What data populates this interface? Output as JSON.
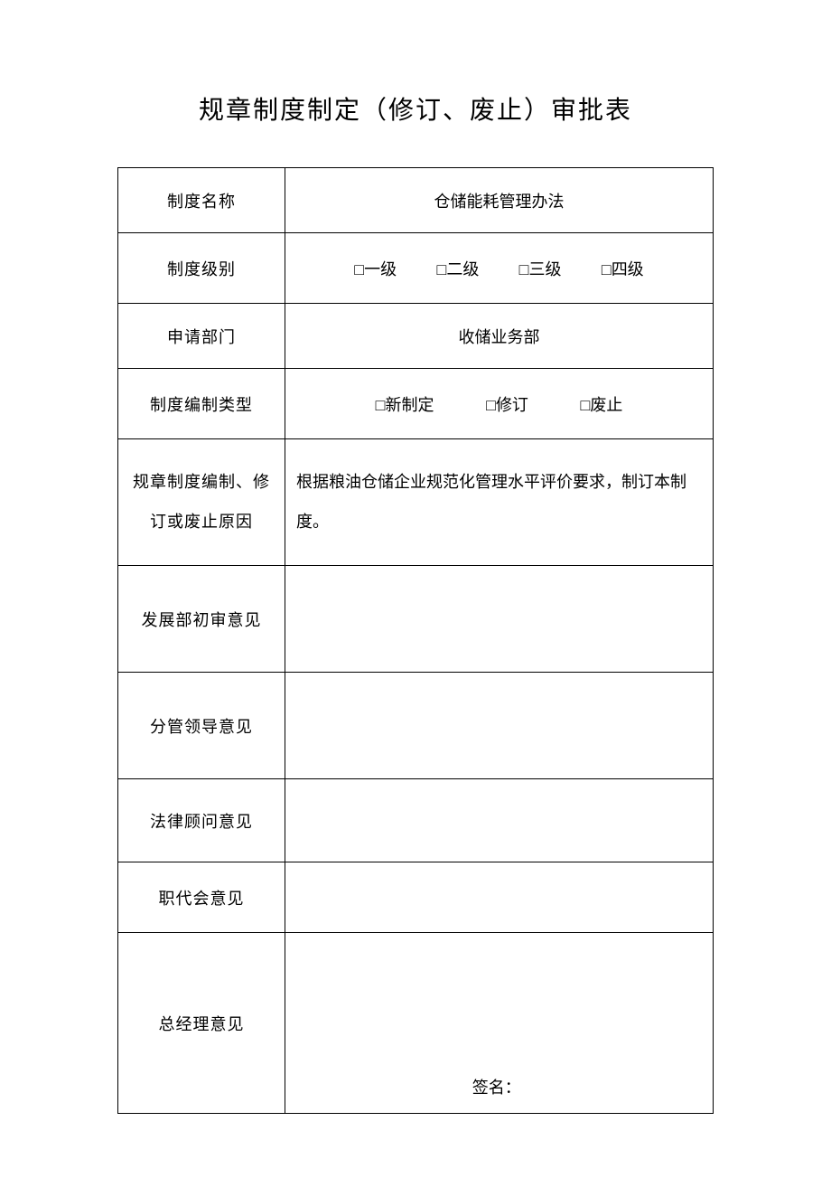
{
  "title": "规章制度制定（修订、废止）审批表",
  "rows": {
    "name": {
      "label": "制度名称",
      "value": "仓储能耗管理办法"
    },
    "level": {
      "label": "制度级别",
      "options": [
        "一级",
        "二级",
        "三级",
        "四级"
      ]
    },
    "department": {
      "label": "申请部门",
      "value": "收储业务部"
    },
    "type": {
      "label": "制度编制类型",
      "options": [
        "新制定",
        "修订",
        "废止"
      ]
    },
    "reason": {
      "label": "规章制度编制、修订或废止原因",
      "value": "根据粮油仓储企业规范化管理水平评价要求，制订本制度。"
    },
    "review_dev": {
      "label": "发展部初审意见",
      "value": ""
    },
    "review_leader": {
      "label": "分管领导意见",
      "value": ""
    },
    "review_legal": {
      "label": "法律顾问意见",
      "value": ""
    },
    "review_congress": {
      "label": "职代会意见",
      "value": ""
    },
    "review_gm": {
      "label": "总经理意见",
      "value": "",
      "signature_label": "签名："
    }
  },
  "checkbox_prefix": "□",
  "colors": {
    "background": "#ffffff",
    "text": "#000000",
    "border": "#000000"
  }
}
